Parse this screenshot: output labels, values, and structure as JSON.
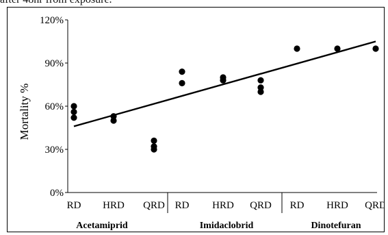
{
  "caption_fragment": "after 48hr from exposure.",
  "chart_data": {
    "type": "scatter",
    "ylabel": "Mortality %",
    "ylim": [
      0,
      120
    ],
    "yticks": [
      "0%",
      "30%",
      "60%",
      "90%",
      "120%"
    ],
    "yticks_values": [
      0,
      30,
      60,
      90,
      120
    ],
    "grid": false,
    "categories": [
      "RD",
      "HRD",
      "QRD",
      "RD",
      "HRD",
      "QRD",
      "RD",
      "HRD",
      "QRD"
    ],
    "groups": [
      "Acetamiprid",
      "Imidaclobrid",
      "Dinotefuran"
    ],
    "points": [
      {
        "x": 0,
        "y": 60
      },
      {
        "x": 0,
        "y": 56
      },
      {
        "x": 0,
        "y": 52
      },
      {
        "x": 1,
        "y": 53
      },
      {
        "x": 1,
        "y": 50
      },
      {
        "x": 2,
        "y": 36
      },
      {
        "x": 2,
        "y": 32
      },
      {
        "x": 2,
        "y": 30
      },
      {
        "x": 3,
        "y": 84
      },
      {
        "x": 3,
        "y": 76
      },
      {
        "x": 4,
        "y": 80
      },
      {
        "x": 4,
        "y": 78
      },
      {
        "x": 5,
        "y": 78
      },
      {
        "x": 5,
        "y": 73
      },
      {
        "x": 5,
        "y": 70
      },
      {
        "x": 6,
        "y": 100
      },
      {
        "x": 7,
        "y": 100
      },
      {
        "x": 8,
        "y": 100
      }
    ],
    "trendline": {
      "x_start": 0,
      "y_start": 46,
      "x_end": 8,
      "y_end": 105
    },
    "colors": {
      "points": "#000000",
      "trendline": "#000000",
      "axis": "#000000"
    }
  }
}
